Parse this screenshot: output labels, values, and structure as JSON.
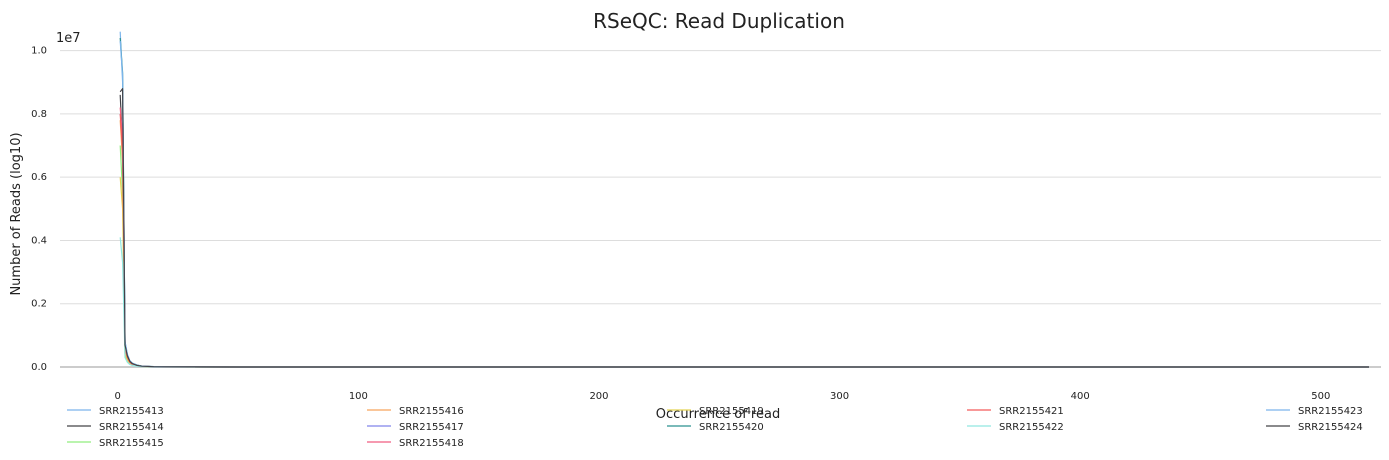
{
  "chart_data": {
    "type": "line",
    "title": "RSeQC: Read Duplication",
    "xlabel": "Occurrence of read",
    "ylabel": "Number of Reads (log10)",
    "y_multiplier_label": "1e7",
    "xlim": [
      -24,
      525
    ],
    "ylim": [
      0,
      1.1
    ],
    "x_ticks": [
      0,
      100,
      200,
      300,
      400,
      500
    ],
    "y_ticks": [
      0.0,
      0.2,
      0.4,
      0.6,
      0.8,
      1.0
    ],
    "x_tick_labels": [
      "0",
      "100",
      "200",
      "300",
      "400",
      "500"
    ],
    "y_tick_labels": [
      "0.0",
      "0.2",
      "0.4",
      "0.6",
      "0.8",
      "1.0"
    ],
    "grid": "horizontal",
    "legend_position": "bottom",
    "x": [
      1,
      2,
      3,
      4,
      5,
      6,
      8,
      10,
      15,
      20,
      30,
      50,
      100,
      200,
      300,
      400,
      500,
      520
    ],
    "series": [
      {
        "name": "SRR2155413",
        "color": "#7cb5ec",
        "values": [
          1.06,
          0.9,
          0.08,
          0.04,
          0.02,
          0.012,
          0.006,
          0.003,
          0.001,
          0.0006,
          0.0003,
          0.0001,
          0,
          0,
          0,
          0,
          0,
          0
        ]
      },
      {
        "name": "SRR2155414",
        "color": "#434348",
        "values": [
          0.86,
          0.7,
          0.06,
          0.03,
          0.016,
          0.01,
          0.005,
          0.0025,
          0.001,
          0.0005,
          0.0002,
          0.0001,
          0,
          0,
          0,
          0,
          0,
          0
        ]
      },
      {
        "name": "SRR2155415",
        "color": "#90ed7d",
        "values": [
          0.7,
          0.55,
          0.04,
          0.02,
          0.01,
          0.007,
          0.004,
          0.002,
          0.0008,
          0.0004,
          0.0002,
          0.0001,
          0,
          0,
          0,
          0,
          0,
          0
        ]
      },
      {
        "name": "SRR2155416",
        "color": "#f7a35c",
        "values": [
          0.78,
          0.65,
          0.05,
          0.025,
          0.013,
          0.008,
          0.004,
          0.002,
          0.0008,
          0.0004,
          0.0002,
          0.0001,
          0,
          0,
          0,
          0,
          0,
          0
        ]
      },
      {
        "name": "SRR2155417",
        "color": "#8085e9",
        "values": [
          0.8,
          0.75,
          0.07,
          0.035,
          0.018,
          0.011,
          0.005,
          0.0025,
          0.001,
          0.0005,
          0.0002,
          0.0001,
          0,
          0,
          0,
          0,
          0,
          0
        ]
      },
      {
        "name": "SRR2155418",
        "color": "#f15c80",
        "values": [
          0.82,
          0.72,
          0.065,
          0.03,
          0.016,
          0.01,
          0.005,
          0.0025,
          0.001,
          0.0005,
          0.0002,
          0.0001,
          0,
          0,
          0,
          0,
          0,
          0
        ]
      },
      {
        "name": "SRR2155419",
        "color": "#e4d354",
        "values": [
          0.6,
          0.5,
          0.045,
          0.022,
          0.012,
          0.007,
          0.004,
          0.002,
          0.0008,
          0.0004,
          0.0002,
          0.0001,
          0,
          0,
          0,
          0,
          0,
          0
        ]
      },
      {
        "name": "SRR2155420",
        "color": "#2b908f",
        "values": [
          1.04,
          0.93,
          0.075,
          0.036,
          0.019,
          0.012,
          0.006,
          0.003,
          0.0012,
          0.0006,
          0.0003,
          0.0001,
          0,
          0,
          0,
          0,
          0,
          0
        ]
      },
      {
        "name": "SRR2155421",
        "color": "#f45b5b",
        "values": [
          0.8,
          0.68,
          0.06,
          0.03,
          0.015,
          0.009,
          0.005,
          0.0025,
          0.001,
          0.0005,
          0.0002,
          0.0001,
          0,
          0,
          0,
          0,
          0,
          0
        ]
      },
      {
        "name": "SRR2155422",
        "color": "#91e8e1",
        "values": [
          0.41,
          0.33,
          0.03,
          0.015,
          0.008,
          0.005,
          0.003,
          0.0015,
          0.0006,
          0.0003,
          0.0001,
          0.0001,
          0,
          0,
          0,
          0,
          0,
          0
        ]
      },
      {
        "name": "SRR2155423",
        "color": "#7cb5ec",
        "values": [
          1.03,
          0.92,
          0.08,
          0.04,
          0.02,
          0.012,
          0.006,
          0.003,
          0.0012,
          0.0006,
          0.0003,
          0.0001,
          0,
          0,
          0,
          0,
          0,
          0
        ]
      },
      {
        "name": "SRR2155424",
        "color": "#434348",
        "values": [
          0.87,
          0.88,
          0.07,
          0.035,
          0.018,
          0.011,
          0.005,
          0.0025,
          0.001,
          0.0005,
          0.0002,
          0.0001,
          0,
          0,
          0,
          0,
          0,
          0
        ]
      }
    ]
  }
}
